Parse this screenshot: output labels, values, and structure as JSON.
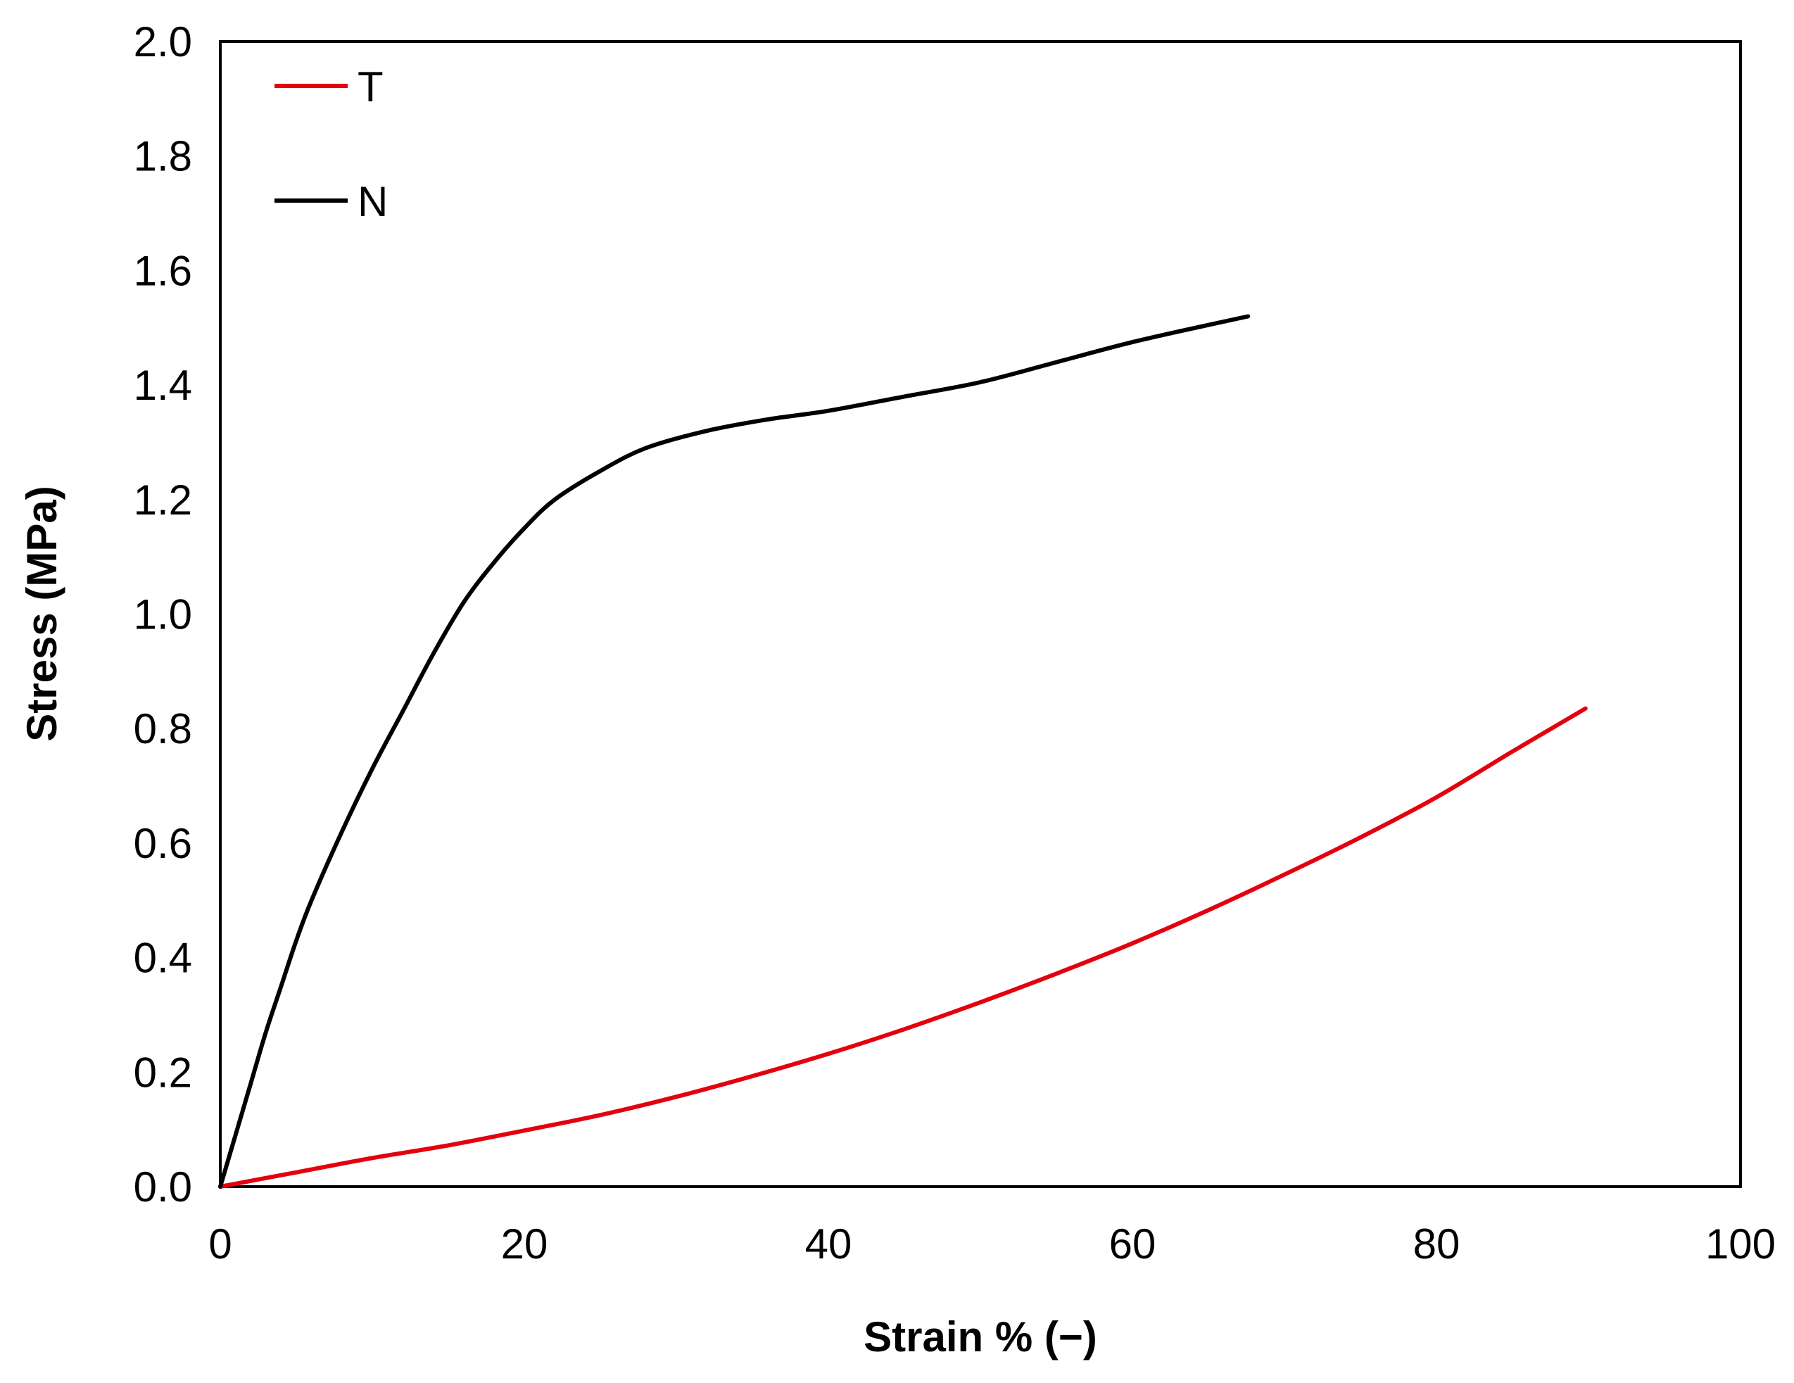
{
  "chart_data": {
    "type": "line",
    "title": "",
    "xlabel": "Strain % (−)",
    "ylabel": "Stress (MPa)",
    "xlim": [
      0,
      100
    ],
    "ylim": [
      0,
      2.0
    ],
    "xticks": [
      "0",
      "20",
      "40",
      "60",
      "80",
      "100"
    ],
    "yticks": [
      "0.0",
      "0.2",
      "0.4",
      "0.6",
      "0.8",
      "1.0",
      "1.2",
      "1.4",
      "1.6",
      "1.8",
      "2.0"
    ],
    "grid": false,
    "legend_position": "top-left",
    "series": [
      {
        "name": "T",
        "color": "#e3000f",
        "x": [
          0,
          5,
          10,
          15,
          20,
          25,
          30,
          35,
          40,
          45,
          50,
          55,
          60,
          65,
          70,
          75,
          80,
          85,
          89.8
        ],
        "y": [
          0.0,
          0.025,
          0.05,
          0.072,
          0.098,
          0.125,
          0.157,
          0.193,
          0.232,
          0.275,
          0.322,
          0.372,
          0.425,
          0.483,
          0.545,
          0.61,
          0.68,
          0.76,
          0.835
        ]
      },
      {
        "name": "N",
        "color": "#000000",
        "x": [
          0,
          1,
          2,
          3,
          4,
          5,
          6,
          8,
          10,
          12,
          14,
          16,
          18,
          20,
          22,
          25,
          28,
          32,
          36,
          40,
          45,
          50,
          55,
          60,
          65,
          67.6
        ],
        "y": [
          0.0,
          0.09,
          0.18,
          0.27,
          0.35,
          0.43,
          0.5,
          0.62,
          0.73,
          0.83,
          0.93,
          1.02,
          1.09,
          1.15,
          1.2,
          1.25,
          1.29,
          1.32,
          1.34,
          1.355,
          1.38,
          1.405,
          1.44,
          1.475,
          1.505,
          1.52
        ]
      }
    ]
  }
}
